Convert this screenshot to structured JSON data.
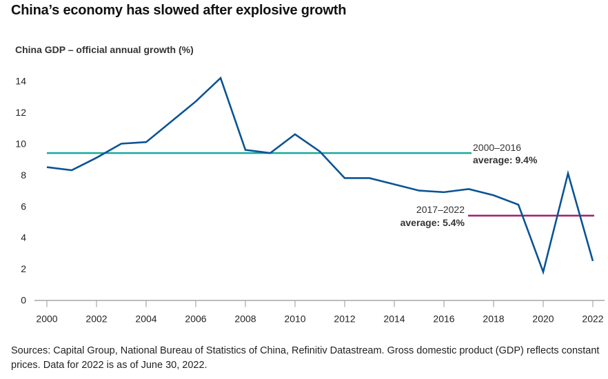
{
  "chart_data": {
    "type": "line",
    "title": "China’s economy has slowed after explosive growth",
    "subtitle": "China GDP – official annual growth (%)",
    "xlabel": "",
    "ylabel": "",
    "x": [
      2000,
      2001,
      2002,
      2003,
      2004,
      2005,
      2006,
      2007,
      2008,
      2009,
      2010,
      2011,
      2012,
      2013,
      2014,
      2015,
      2016,
      2017,
      2018,
      2019,
      2020,
      2021,
      2022
    ],
    "series": [
      {
        "name": "China GDP official annual growth (%)",
        "color": "#0a5394",
        "values": [
          8.5,
          8.3,
          9.1,
          10.0,
          10.1,
          11.4,
          12.7,
          14.2,
          9.6,
          9.4,
          10.6,
          9.5,
          7.8,
          7.8,
          7.4,
          7.0,
          6.9,
          7.1,
          6.7,
          6.1,
          1.8,
          8.1,
          2.5
        ]
      }
    ],
    "reference_lines": [
      {
        "name": "2000–2016 average",
        "value": 9.4,
        "x_start": 2000,
        "x_end": 2017,
        "color": "#17a89e",
        "label_line1": "2000–2016",
        "label_line2": "average: 9.4%"
      },
      {
        "name": "2017–2022 average",
        "value": 5.4,
        "x_start": 2017,
        "x_end": 2022,
        "color": "#a3236f",
        "label_line1": "2017–2022",
        "label_line2": "average: 5.4%"
      }
    ],
    "ylim": [
      0,
      14
    ],
    "xlim": [
      2000,
      2022
    ],
    "y_ticks": [
      "0",
      "2",
      "4",
      "6",
      "8",
      "10",
      "12",
      "14"
    ],
    "x_ticks": [
      "2000",
      "2002",
      "2004",
      "2006",
      "2008",
      "2010",
      "2012",
      "2014",
      "2016",
      "2018",
      "2020",
      "2022"
    ],
    "grid": false,
    "legend": "none"
  },
  "footnote": "Sources: Capital Group, National Bureau of Statistics of China, Refinitiv Datastream. Gross domestic product (GDP) reflects constant prices. Data for 2022 is as of June 30, 2022."
}
